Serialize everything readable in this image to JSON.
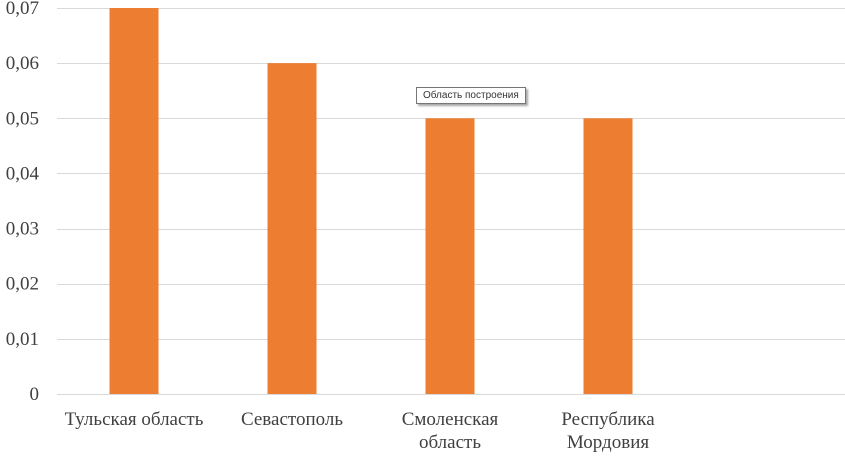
{
  "chart_data": {
    "type": "bar",
    "categories": [
      "Тульская область",
      "Севастополь",
      "Смоленская область",
      "Республика Мордовия"
    ],
    "category_lines": [
      [
        "Тульская область"
      ],
      [
        "Севастополь"
      ],
      [
        "Смоленская",
        "область"
      ],
      [
        "Республика",
        "Мордовия"
      ]
    ],
    "values": [
      0.07,
      0.06,
      0.05,
      0.05
    ],
    "ylim": [
      0,
      0.07
    ],
    "yticks": [
      0,
      0.01,
      0.02,
      0.03,
      0.04,
      0.05,
      0.06,
      0.07
    ],
    "ytick_labels": [
      "0",
      "0,01",
      "0,02",
      "0,03",
      "0,04",
      "0,05",
      "0,06",
      "0,07"
    ],
    "bar_color": "#ED7D31",
    "grid_color": "#D9D9D9",
    "grid": true,
    "legend": false
  },
  "tooltip": {
    "text": "Область построения"
  }
}
